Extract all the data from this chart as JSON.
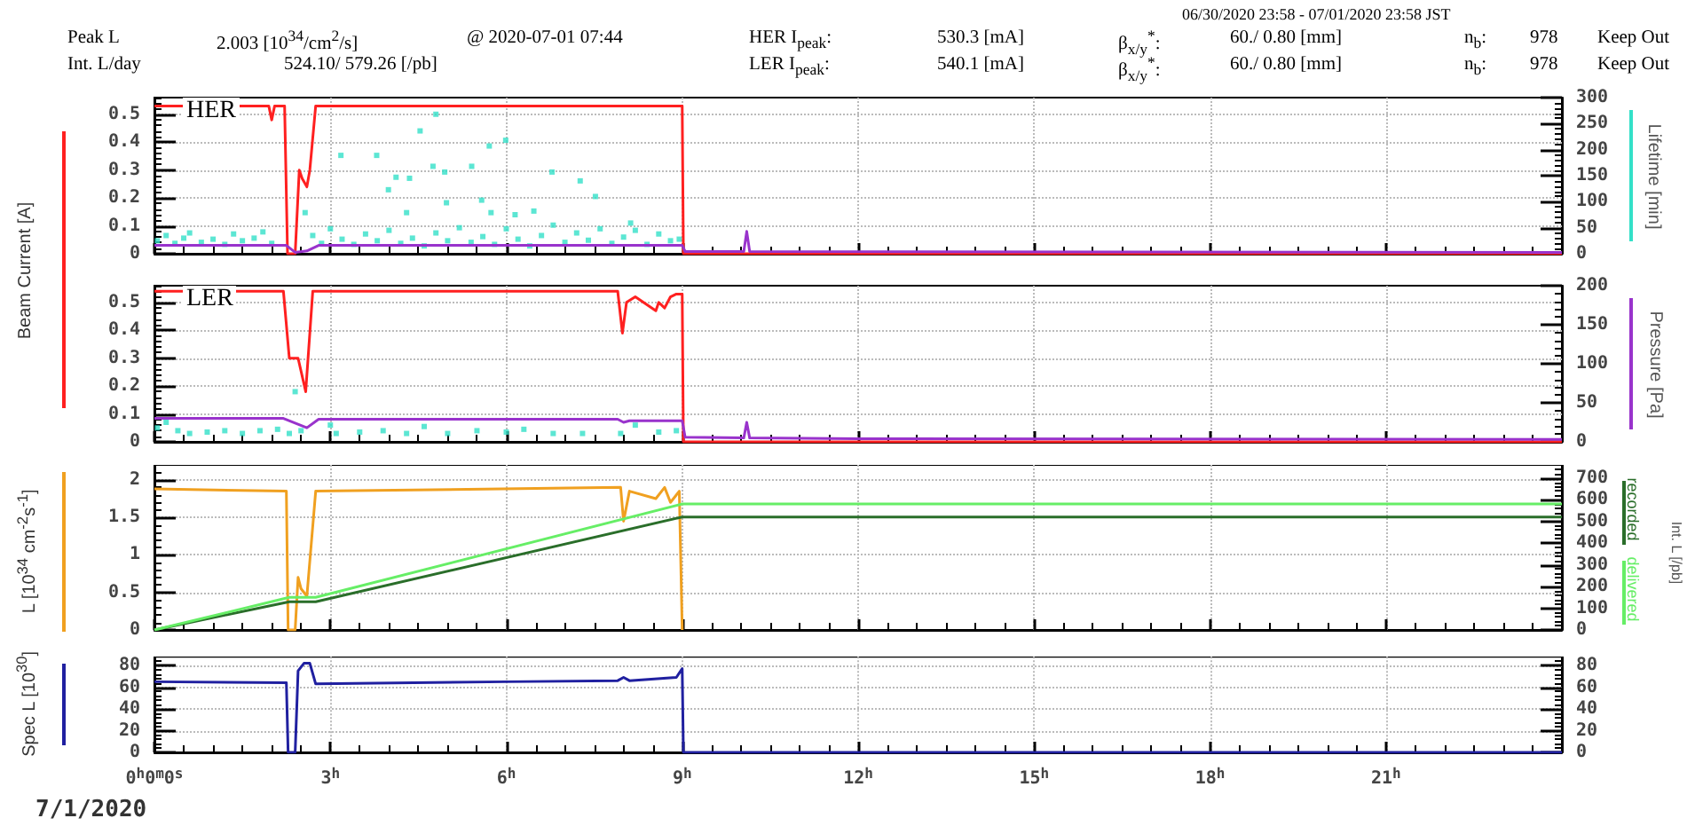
{
  "chart_data": [
    {
      "type": "line",
      "ylabel": "Beam Current [A]",
      "y2label": "Lifetime [min]",
      "xlim": [
        0,
        24
      ],
      "xticks": [
        0,
        3,
        6,
        9,
        12,
        15,
        18,
        21
      ],
      "ylim": [
        0,
        0.56
      ],
      "yticks": [
        0,
        0.1,
        0.2,
        0.3,
        0.4,
        0.5
      ],
      "y2lim": [
        0,
        300
      ],
      "y2ticks": [
        0,
        50,
        100,
        150,
        200,
        250,
        300
      ],
      "grid": true,
      "tick_labels": "y",
      "annotations": [
        "06/30/2020 23:58 - 07/01/2020 23:58 JST",
        "Peak L",
        "2.003 [10$^{34}$/cm$^{2}$/s]",
        "@ 2020-07-01 07:44",
        "HER I$_{peak}$:",
        "530.3 [mA]",
        "β$_{x/y}$$^{*}$:",
        "60./ 0.80 [mm]",
        "n$_{b}$:",
        "978",
        "Keep Out",
        "Int. L/day",
        "524.10/ 579.26 [/pb]",
        "LER I$_{peak}$:",
        "540.1 [mA]",
        "β$_{x/y}$$^{*}$:",
        "60./ 0.80 [mm]",
        "n$_{b}$:",
        "978",
        "Keep Out",
        "HER"
      ],
      "series": [
        {
          "color": "#ff2020",
          "x": [
            0,
            1.95,
            2.0,
            2.05,
            2.12,
            2.22,
            2.27,
            2.4,
            2.47,
            2.52,
            2.6,
            2.65,
            2.75,
            9.0,
            9.02,
            24
          ],
          "values": [
            0.53,
            0.53,
            0.48,
            0.53,
            0.53,
            0.53,
            0,
            0,
            0.3,
            0.27,
            0.24,
            0.3,
            0.53,
            0.53,
            0,
            0
          ]
        },
        {
          "color": "#9933cc",
          "x": [
            0,
            2.25,
            2.4,
            2.6,
            2.8,
            9.0,
            9.05,
            10.05,
            10.1,
            10.15,
            24
          ],
          "values": [
            0.03,
            0.03,
            0.005,
            0.01,
            0.03,
            0.03,
            0.008,
            0.008,
            0.08,
            0.008,
            0.005
          ]
        },
        {
          "type": "scatter",
          "axis": "y2",
          "color": "#33e0c8",
          "x": [
            0.05,
            0.2,
            0.35,
            0.5,
            0.6,
            0.8,
            1.0,
            1.2,
            1.35,
            1.5,
            1.7,
            1.85,
            2.0,
            2.57,
            2.7,
            2.85,
            3.0,
            3.18,
            3.2,
            3.4,
            3.6,
            3.79,
            3.8,
            3.99,
            4.0,
            4.12,
            4.2,
            4.3,
            4.35,
            4.4,
            4.53,
            4.6,
            4.75,
            4.8,
            4.8,
            4.95,
            4.98,
            5.0,
            5.2,
            5.4,
            5.41,
            5.58,
            5.6,
            5.71,
            5.74,
            5.8,
            5.99,
            6.0,
            6.15,
            6.2,
            6.4,
            6.47,
            6.6,
            6.78,
            6.8,
            7.0,
            7.2,
            7.26,
            7.4,
            7.52,
            7.6,
            7.8,
            8.0,
            8.12,
            8.2,
            8.4,
            8.6,
            8.8,
            8.95
          ],
          "values": [
            25,
            35,
            20,
            30,
            40,
            22,
            28,
            18,
            38,
            25,
            30,
            42,
            20,
            79,
            35,
            20,
            48,
            189,
            28,
            18,
            38,
            189,
            25,
            123,
            45,
            147,
            20,
            79,
            145,
            30,
            236,
            15,
            168,
            40,
            268,
            157,
            98,
            25,
            50,
            22,
            168,
            103,
            33,
            207,
            79,
            18,
            218,
            48,
            75,
            28,
            15,
            82,
            35,
            157,
            55,
            22,
            40,
            140,
            26,
            110,
            48,
            20,
            32,
            59,
            45,
            18,
            38,
            25,
            28
          ]
        }
      ]
    },
    {
      "type": "line",
      "xlim": [
        0,
        24
      ],
      "xticks": [
        0,
        3,
        6,
        9,
        12,
        15,
        18,
        21
      ],
      "ylim": [
        0,
        0.56
      ],
      "yticks": [
        0,
        0.1,
        0.2,
        0.3,
        0.4,
        0.5
      ],
      "y2label": "Pressure [Pa]",
      "y2lim": [
        0,
        200
      ],
      "y2ticks": [
        0,
        50,
        100,
        150,
        200
      ],
      "grid": true,
      "tick_labels": "y",
      "annotations": [
        "LER"
      ],
      "series": [
        {
          "color": "#ff2020",
          "x": [
            0,
            2.2,
            2.3,
            2.45,
            2.58,
            2.7,
            7.9,
            7.98,
            8.05,
            8.2,
            8.55,
            8.6,
            8.7,
            8.8,
            8.9,
            9.0,
            9.02,
            24
          ],
          "values": [
            0.54,
            0.54,
            0.3,
            0.3,
            0.18,
            0.54,
            0.54,
            0.39,
            0.5,
            0.52,
            0.47,
            0.5,
            0.48,
            0.52,
            0.53,
            0.53,
            0,
            0
          ]
        },
        {
          "axis": "y2",
          "color": "#9933cc",
          "x": [
            0,
            2.2,
            2.6,
            2.8,
            7.9,
            8.0,
            8.1,
            9.0,
            9.05,
            10.05,
            10.1,
            10.15,
            12,
            24
          ],
          "values": [
            30,
            30,
            18,
            29,
            29,
            25,
            27,
            27,
            6,
            5,
            25,
            5,
            4,
            3
          ]
        },
        {
          "type": "scatter",
          "color": "#33e0c8",
          "x": [
            0.05,
            0.2,
            0.4,
            0.6,
            0.9,
            1.2,
            1.5,
            1.8,
            2.1,
            2.3,
            2.4,
            2.5,
            3.0,
            3.1,
            3.5,
            3.9,
            4.3,
            4.6,
            5.0,
            5.5,
            6.0,
            6.3,
            6.8,
            7.3,
            7.95,
            8.2,
            8.6,
            8.9
          ],
          "values": [
            0.05,
            0.07,
            0.04,
            0.03,
            0.035,
            0.04,
            0.03,
            0.04,
            0.045,
            0.03,
            0.18,
            0.04,
            0.06,
            0.03,
            0.035,
            0.04,
            0.03,
            0.055,
            0.03,
            0.04,
            0.035,
            0.045,
            0.03,
            0.03,
            0.03,
            0.06,
            0.035,
            0.04
          ]
        }
      ]
    },
    {
      "type": "line",
      "ylabel": "L [10$^{34}$ cm$^{-2}$s$^{-1}$]",
      "y2label": "Int. L [/pb]",
      "xlim": [
        0,
        24
      ],
      "xticks": [
        0,
        3,
        6,
        9,
        12,
        15,
        18,
        21
      ],
      "ylim": [
        0,
        2.2
      ],
      "yticks": [
        0,
        0.5,
        1,
        1.5,
        2
      ],
      "y2lim": [
        0,
        760
      ],
      "y2ticks": [
        0,
        100,
        200,
        300,
        400,
        500,
        600,
        700
      ],
      "grid": true,
      "tick_labels": "y",
      "legend": "right",
      "series": [
        {
          "color": "#f0a020",
          "x": [
            0,
            2.25,
            2.28,
            2.4,
            2.45,
            2.5,
            2.6,
            2.75,
            7.95,
            8.0,
            8.1,
            8.55,
            8.7,
            8.8,
            8.95,
            9.0
          ],
          "values": [
            1.88,
            1.85,
            0,
            0,
            0.7,
            0.55,
            0.45,
            1.85,
            1.9,
            1.45,
            1.85,
            1.75,
            1.9,
            1.7,
            1.85,
            0
          ]
        },
        {
          "name": "recorded",
          "axis": "y2",
          "color": "#2a6e2a",
          "x": [
            0,
            2.3,
            2.75,
            9.0,
            24
          ],
          "values": [
            0,
            130,
            130,
            520,
            520
          ]
        },
        {
          "name": "delivered",
          "axis": "y2",
          "color": "#66ee66",
          "x": [
            0,
            2.3,
            2.75,
            9.0,
            24
          ],
          "values": [
            0,
            150,
            150,
            580,
            580
          ]
        }
      ]
    },
    {
      "type": "line",
      "ylabel": "Spec L [10$^{30}$]",
      "xlim": [
        0,
        24
      ],
      "xticks": [
        {
          "value": 0,
          "label": "0$^{h}$0$^{m}$0$^{s}$"
        },
        {
          "value": 3,
          "label": "3$^{h}$"
        },
        {
          "value": 6,
          "label": "6$^{h}$"
        },
        {
          "value": 9,
          "label": "9$^{h}$"
        },
        {
          "value": 12,
          "label": "12$^{h}$"
        },
        {
          "value": 15,
          "label": "15$^{h}$"
        },
        {
          "value": 18,
          "label": "18$^{h}$"
        },
        {
          "value": 21,
          "label": "21$^{h}$"
        }
      ],
      "ylim": [
        0,
        88
      ],
      "yticks": [
        0,
        20,
        40,
        60,
        80
      ],
      "y2lim": [
        0,
        88
      ],
      "y2ticks": [
        0,
        20,
        40,
        60,
        80
      ],
      "grid": true,
      "annotations": [
        "7/1/2020"
      ],
      "series": [
        {
          "color": "#2020a0",
          "x": [
            0,
            2.25,
            2.28,
            2.4,
            2.45,
            2.55,
            2.65,
            2.75,
            6,
            7.9,
            8.0,
            8.1,
            8.9,
            9.0,
            9.02,
            24
          ],
          "values": [
            65,
            64,
            0,
            0,
            75,
            82,
            82,
            63,
            65,
            66,
            69,
            66,
            69,
            77,
            0,
            0
          ]
        }
      ]
    }
  ]
}
